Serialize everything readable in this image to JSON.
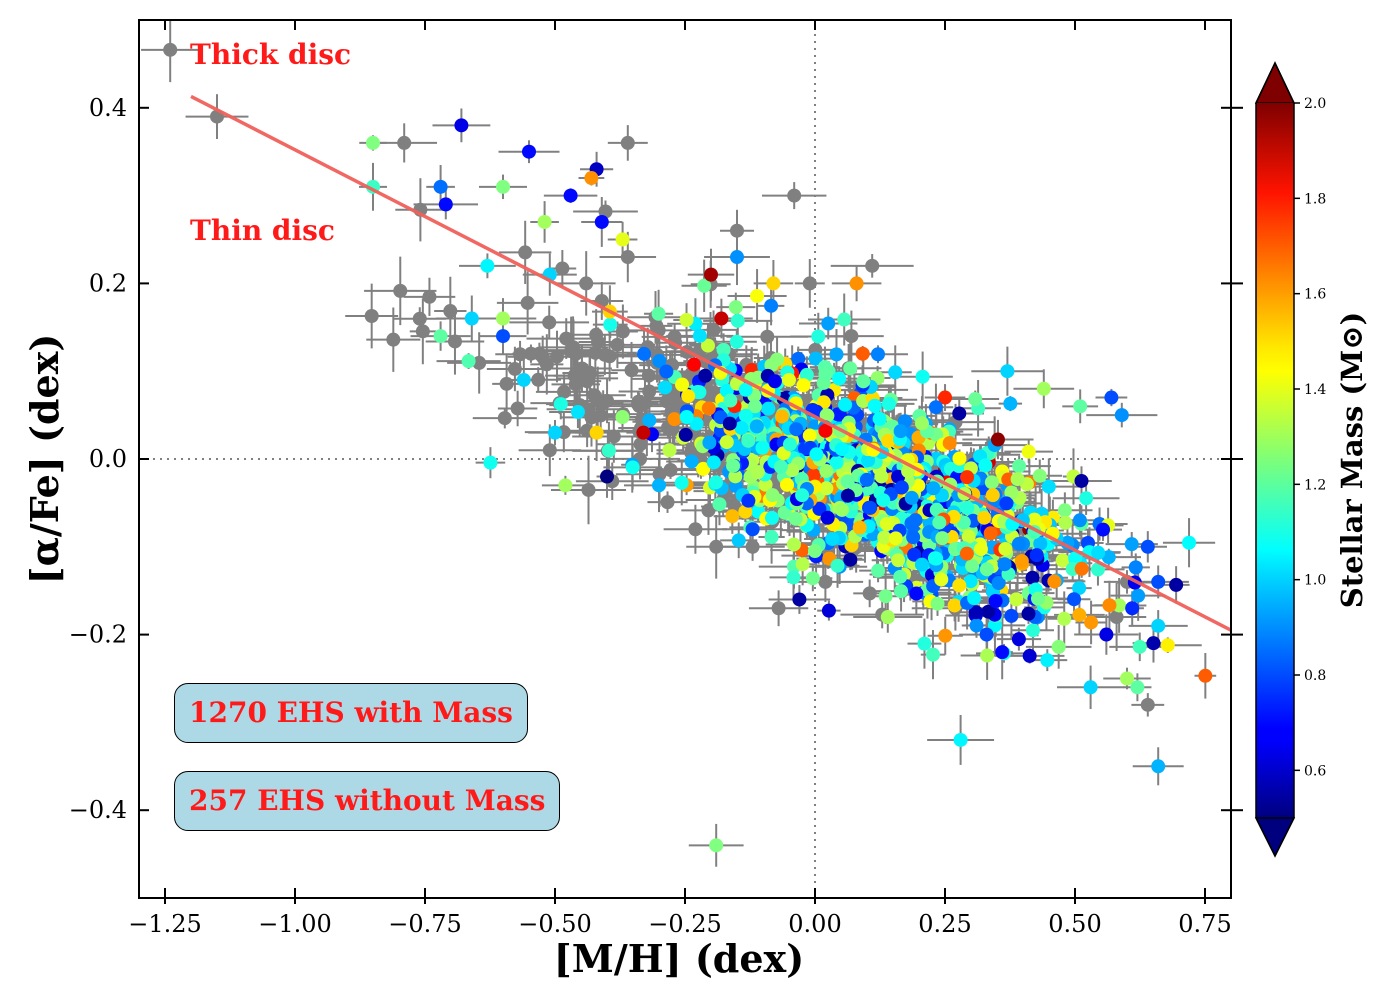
{
  "chart_data": {
    "type": "scatter",
    "xlabel": "[M/H] (dex)",
    "ylabel": "[α/Fe] (dex)",
    "xlim": [
      -1.3,
      0.8
    ],
    "ylim": [
      -0.5,
      0.5
    ],
    "x_ticks": [
      -1.25,
      -1.0,
      -0.75,
      -0.5,
      -0.25,
      0.0,
      0.25,
      0.5,
      0.75
    ],
    "x_tick_labels": [
      "−1.25",
      "−1.00",
      "−0.75",
      "−0.50",
      "−0.25",
      "0.00",
      "0.25",
      "0.50",
      "0.75"
    ],
    "y_ticks": [
      0.4,
      0.2,
      0.0,
      -0.2,
      -0.4
    ],
    "y_tick_labels": [
      "0.4",
      "0.2",
      "0.0",
      "−0.2",
      "−0.4"
    ],
    "reference_lines": {
      "x": 0.0,
      "y": 0.0,
      "style": "dotted",
      "color": "#808080"
    },
    "division_line": {
      "x": [
        -1.2,
        0.8
      ],
      "y": [
        0.413,
        -0.195
      ],
      "color": "#f0605a"
    },
    "colorbar": {
      "label": "Stellar Mass (M⊙)",
      "colormap": "jet",
      "range": [
        0.5,
        2.0
      ],
      "ticks": [
        0.6,
        0.8,
        1.0,
        1.2,
        1.4,
        1.6,
        1.8,
        2.0
      ],
      "tick_labels": [
        "0.6",
        "0.8",
        "1.0",
        "1.2",
        "1.4",
        "1.6",
        "1.8",
        "2.0"
      ],
      "extend": "both"
    },
    "annotations": {
      "thick_disc": "Thick disc",
      "thin_disc": "Thin disc",
      "count_with_mass": "1270 EHS with Mass",
      "count_without_mass": "257 EHS without Mass"
    },
    "without_mass_color": "#808080",
    "legend_marker": "gray circle with error bars",
    "series": [
      {
        "name": "1270 EHS with Mass",
        "count": 1270,
        "distribution": {
          "mh_center": 0.12,
          "mh_sd": 0.19,
          "slope": -0.24,
          "intercept": 0.0,
          "scatter": 0.055
        },
        "points": [
          [
            -0.85,
            0.36,
            1.25
          ],
          [
            -0.72,
            0.31,
            0.85
          ],
          [
            -0.68,
            0.38,
            0.65
          ],
          [
            -0.71,
            0.29,
            0.7
          ],
          [
            -0.55,
            0.35,
            0.7
          ],
          [
            -0.6,
            0.31,
            1.25
          ],
          [
            -0.63,
            0.22,
            1.05
          ],
          [
            -0.85,
            0.31,
            1.15
          ],
          [
            -0.72,
            0.14,
            1.2
          ],
          [
            -0.66,
            0.16,
            1.0
          ],
          [
            -0.6,
            0.16,
            1.3
          ],
          [
            -0.6,
            0.14,
            0.8
          ],
          [
            -0.56,
            0.09,
            1.0
          ],
          [
            -0.52,
            0.27,
            1.3
          ],
          [
            -0.51,
            0.21,
            1.0
          ],
          [
            -0.47,
            0.3,
            0.7
          ],
          [
            -0.42,
            0.33,
            0.6
          ],
          [
            -0.43,
            0.32,
            1.6
          ],
          [
            -0.41,
            0.27,
            0.7
          ],
          [
            -0.37,
            0.25,
            1.4
          ],
          [
            -0.2,
            0.21,
            1.95
          ],
          [
            -0.18,
            0.16,
            1.9
          ],
          [
            -0.15,
            0.23,
            0.9
          ],
          [
            -0.08,
            0.2,
            1.5
          ],
          [
            0.08,
            0.2,
            1.6
          ],
          [
            -0.05,
            0.09,
            1.4
          ],
          [
            -0.5,
            0.03,
            1.0
          ],
          [
            -0.42,
            0.03,
            1.5
          ],
          [
            -0.4,
            -0.02,
            0.5
          ],
          [
            -0.48,
            -0.03,
            1.3
          ],
          [
            0.14,
            -0.18,
            1.3
          ],
          [
            0.28,
            -0.32,
            1.05
          ],
          [
            -0.19,
            -0.44,
            1.25
          ],
          [
            0.66,
            -0.35,
            0.95
          ],
          [
            0.53,
            -0.26,
            1.0
          ],
          [
            0.6,
            -0.25,
            1.3
          ],
          [
            0.62,
            -0.26,
            1.2
          ],
          [
            0.57,
            0.07,
            0.8
          ],
          [
            0.59,
            0.05,
            0.9
          ],
          [
            0.51,
            0.06,
            1.2
          ],
          [
            0.66,
            -0.14,
            0.8
          ],
          [
            0.64,
            -0.1,
            0.8
          ],
          [
            0.66,
            -0.19,
            1.0
          ],
          [
            0.61,
            -0.17,
            0.75
          ],
          [
            -0.03,
            -0.16,
            0.55
          ],
          [
            0.33,
            -0.2,
            0.8
          ],
          [
            0.36,
            -0.22,
            0.7
          ],
          [
            0.37,
            0.1,
            1.0
          ],
          [
            0.44,
            0.08,
            1.3
          ],
          [
            -0.12,
            -0.08,
            0.8
          ],
          [
            -0.33,
            0.03,
            1.9
          ],
          [
            -0.3,
            -0.03,
            0.95
          ]
        ]
      },
      {
        "name": "257 EHS without Mass",
        "count": 257,
        "distribution": {
          "mh_center": -0.2,
          "mh_sd": 0.33,
          "slope": -0.22,
          "intercept": 0.0,
          "scatter": 0.06
        },
        "points": [
          [
            -1.24,
            0.466
          ],
          [
            -1.15,
            0.39
          ],
          [
            -0.79,
            0.36
          ],
          [
            -0.36,
            0.36
          ],
          [
            -0.04,
            0.3
          ],
          [
            -0.15,
            0.26
          ],
          [
            0.11,
            0.22
          ],
          [
            -0.36,
            0.23
          ],
          [
            -0.44,
            0.2
          ],
          [
            -0.41,
            0.18
          ],
          [
            -0.53,
            0.12
          ],
          [
            -0.51,
            0.01
          ],
          [
            -0.23,
            -0.08
          ],
          [
            -0.19,
            -0.1
          ],
          [
            -0.12,
            -0.1
          ],
          [
            -0.07,
            -0.17
          ],
          [
            0.6,
            -0.14
          ],
          [
            0.64,
            -0.28
          ],
          [
            0.58,
            -0.18
          ],
          [
            0.27,
            -0.17
          ],
          [
            -0.01,
            0.2
          ],
          [
            0.02,
            -0.14
          ],
          [
            -0.38,
            0.13
          ],
          [
            0.07,
            0.14
          ]
        ]
      }
    ]
  }
}
